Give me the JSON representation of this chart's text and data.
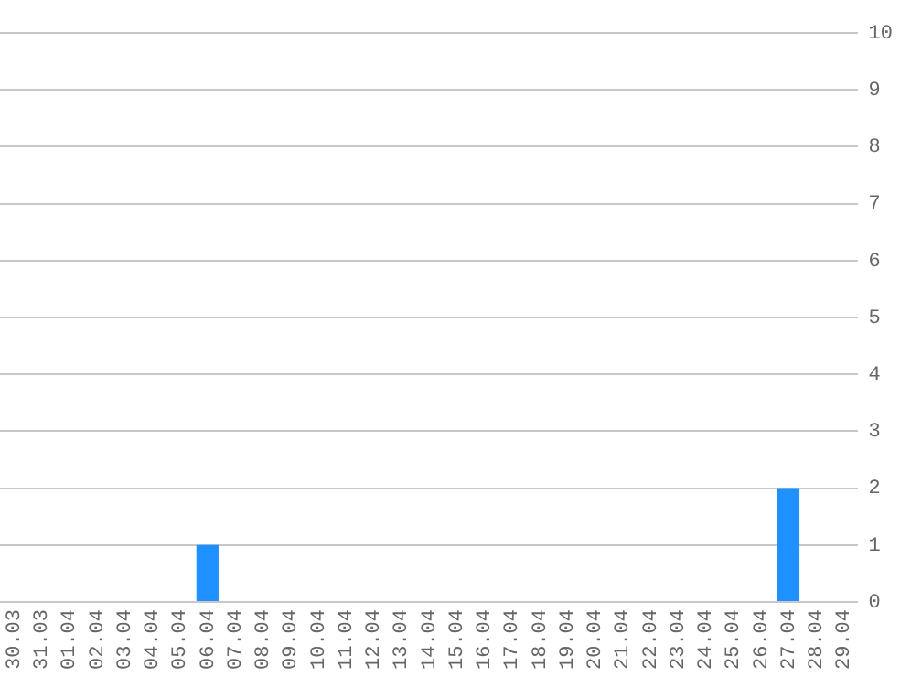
{
  "chart_data": {
    "type": "bar",
    "categories": [
      "30.03",
      "31.03",
      "01.04",
      "02.04",
      "03.04",
      "04.04",
      "05.04",
      "06.04",
      "07.04",
      "08.04",
      "09.04",
      "10.04",
      "11.04",
      "12.04",
      "13.04",
      "14.04",
      "15.04",
      "16.04",
      "17.04",
      "18.04",
      "19.04",
      "20.04",
      "21.04",
      "22.04",
      "23.04",
      "24.04",
      "25.04",
      "26.04",
      "27.04",
      "28.04",
      "29.04"
    ],
    "values": [
      0,
      0,
      0,
      0,
      0,
      0,
      0,
      1,
      0,
      0,
      0,
      0,
      0,
      0,
      0,
      0,
      0,
      0,
      0,
      0,
      0,
      0,
      0,
      0,
      0,
      0,
      0,
      0,
      2,
      0,
      0
    ],
    "color": "#1e90ff",
    "ylim": [
      0,
      10
    ],
    "yticks": [
      0,
      1,
      2,
      3,
      4,
      5,
      6,
      7,
      8,
      9,
      10
    ],
    "grid": "y",
    "legend": false
  }
}
